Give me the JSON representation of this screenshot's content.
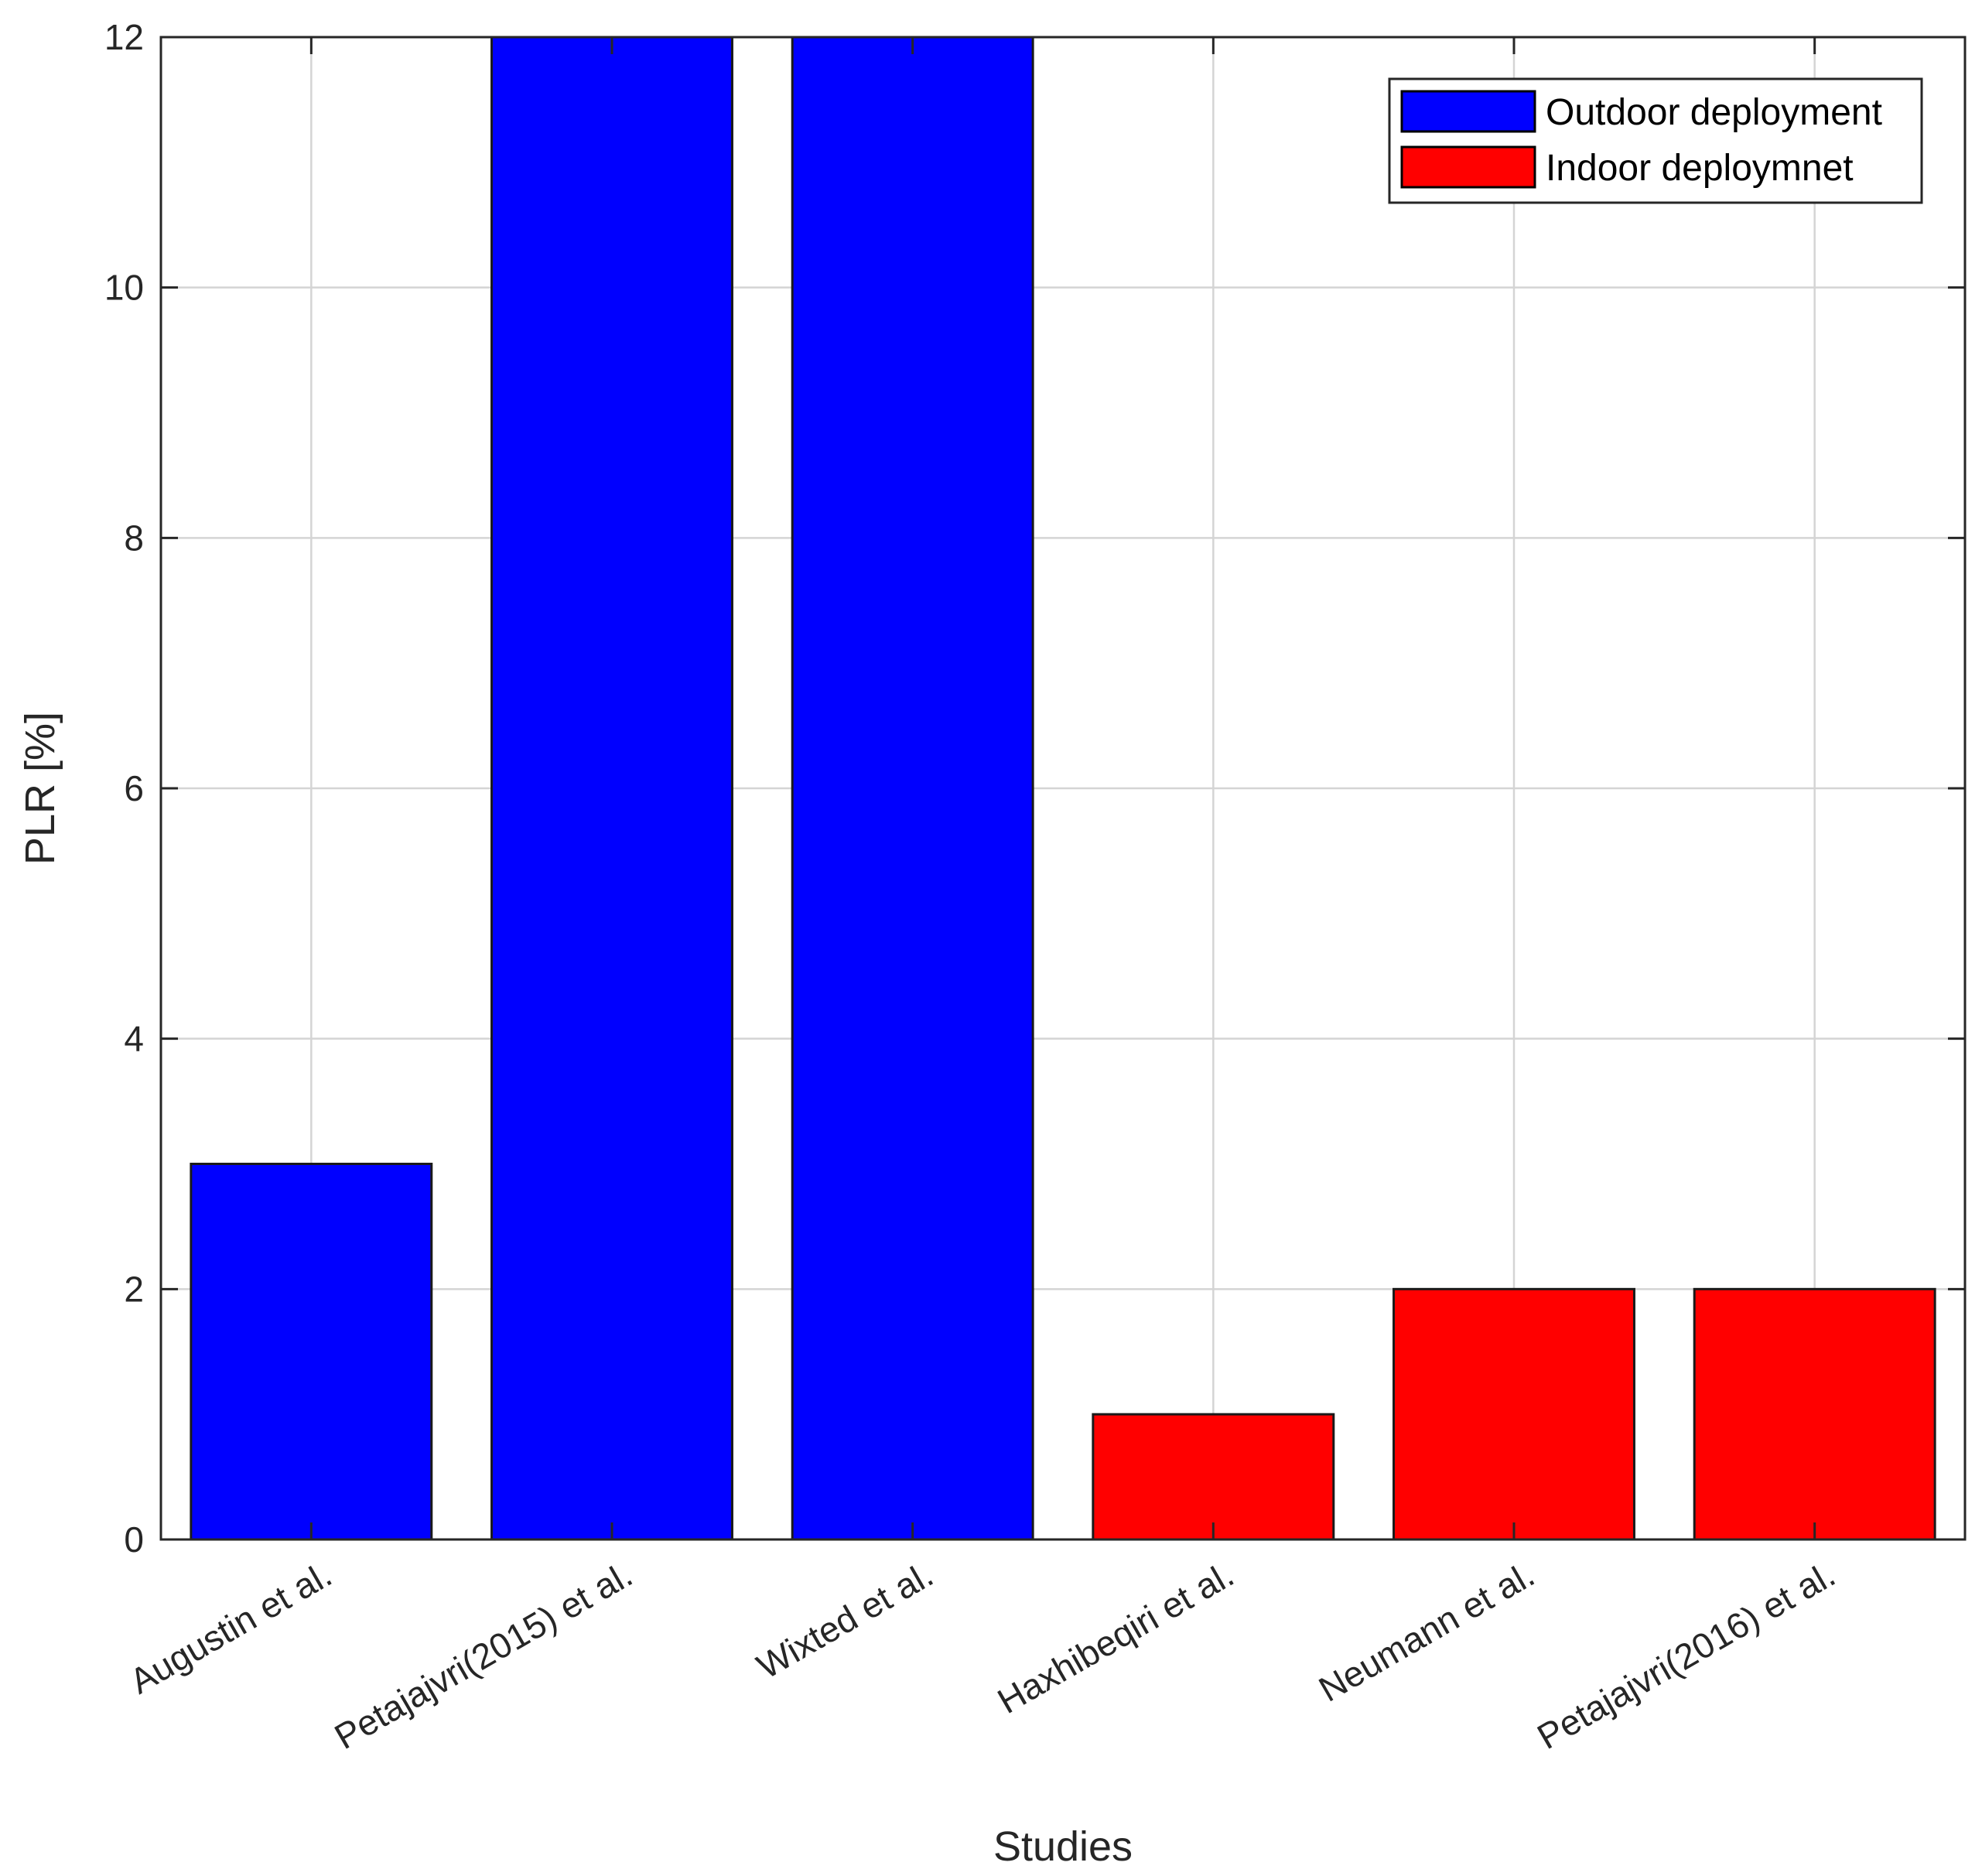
{
  "chart_data": {
    "type": "bar",
    "title": "",
    "xlabel": "Studies",
    "ylabel": "PLR [%]",
    "ylim": [
      0,
      12
    ],
    "yticks": [
      "0",
      "2",
      "4",
      "6",
      "8",
      "10",
      "12"
    ],
    "grid": true,
    "categories": [
      "Augustin et al.",
      "Petajajvri(2015) et al.",
      "Wixted et al.",
      "Haxhibeqiri et al.",
      "Neumann et al.",
      "Petajajvri(2016) et al."
    ],
    "values": [
      3,
      12,
      12,
      1,
      2,
      2
    ],
    "groups": [
      "Outdoor deployment",
      "Outdoor deployment",
      "Outdoor deployment",
      "Indoor deploymnet",
      "Indoor deploymnet",
      "Indoor deploymnet"
    ],
    "legend": {
      "placement": "top-right",
      "entries": [
        {
          "label": "Outdoor deployment",
          "color": "#0000ff"
        },
        {
          "label": "Indoor deploymnet",
          "color": "#ff0000"
        }
      ]
    }
  }
}
